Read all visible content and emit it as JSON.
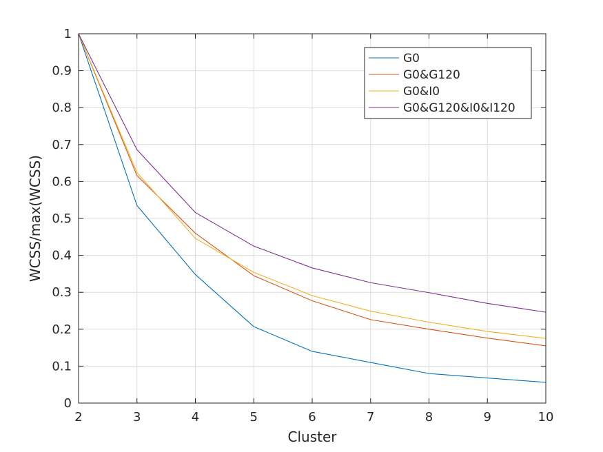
{
  "chart_data": {
    "type": "line",
    "title": "",
    "xlabel": "Cluster",
    "ylabel": "WCSS/max(WCSS)",
    "xlim": [
      2,
      10
    ],
    "ylim": [
      0,
      1
    ],
    "xticks": [
      2,
      3,
      4,
      5,
      6,
      7,
      8,
      9,
      10
    ],
    "yticks": [
      0,
      0.1,
      0.2,
      0.3,
      0.4,
      0.5,
      0.6,
      0.7,
      0.8,
      0.9,
      1
    ],
    "x_tick_labels": [
      "2",
      "3",
      "4",
      "5",
      "6",
      "7",
      "8",
      "9",
      "10"
    ],
    "y_tick_labels": [
      "0",
      "0.1",
      "0.2",
      "0.3",
      "0.4",
      "0.5",
      "0.6",
      "0.7",
      "0.8",
      "0.9",
      "1"
    ],
    "grid": true,
    "legend_position": "top-right",
    "x": [
      2,
      3,
      4,
      5,
      6,
      7,
      8,
      9,
      10
    ],
    "series": [
      {
        "name": "G0",
        "color": "#0072BD",
        "values": [
          1.0,
          0.535,
          0.348,
          0.207,
          0.14,
          0.11,
          0.08,
          0.068,
          0.056
        ]
      },
      {
        "name": "G0&G120",
        "color": "#D95319",
        "values": [
          1.0,
          0.616,
          0.46,
          0.345,
          0.277,
          0.226,
          0.2,
          0.176,
          0.155
        ]
      },
      {
        "name": "G0&I0",
        "color": "#EDB120",
        "values": [
          1.0,
          0.624,
          0.446,
          0.354,
          0.291,
          0.249,
          0.219,
          0.194,
          0.175
        ]
      },
      {
        "name": "G0&G120&I0&I120",
        "color": "#7E2F8E",
        "values": [
          1.0,
          0.686,
          0.516,
          0.425,
          0.366,
          0.326,
          0.299,
          0.27,
          0.246
        ]
      }
    ]
  }
}
